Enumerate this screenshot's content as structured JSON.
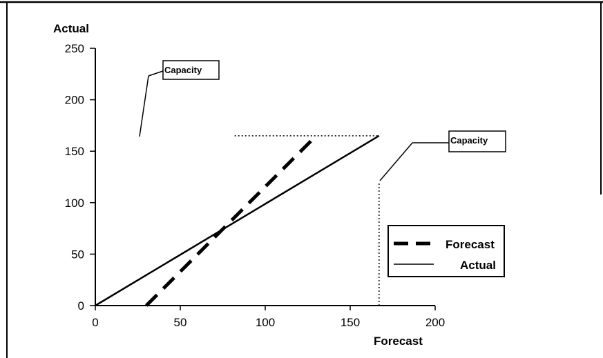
{
  "chart_data": {
    "type": "line",
    "title": "",
    "xlabel": "Forecast",
    "ylabel": "Actual",
    "xlim": [
      0,
      200
    ],
    "ylim": [
      0,
      250
    ],
    "xticks": [
      "0",
      "50",
      "100",
      "150",
      "200"
    ],
    "yticks": [
      "0",
      "50",
      "100",
      "150",
      "200",
      "250"
    ],
    "grid": false,
    "legend_position": "right",
    "series": [
      {
        "name": "Forecast",
        "style": "dashed",
        "x": [
          30,
          130
        ],
        "y": [
          0,
          165
        ]
      },
      {
        "name": "Actual",
        "style": "solid",
        "x": [
          0,
          167
        ],
        "y": [
          0,
          165
        ]
      }
    ],
    "capacity_lines": {
      "horizontal": {
        "x": [
          82,
          167
        ],
        "y": [
          165,
          165
        ]
      },
      "vertical": {
        "x": [
          167,
          167
        ],
        "y": [
          0,
          120
        ]
      }
    },
    "annotations": [
      {
        "id": "capacity-top",
        "text": "Capacity"
      },
      {
        "id": "capacity-right",
        "text": "Capacity"
      }
    ]
  }
}
